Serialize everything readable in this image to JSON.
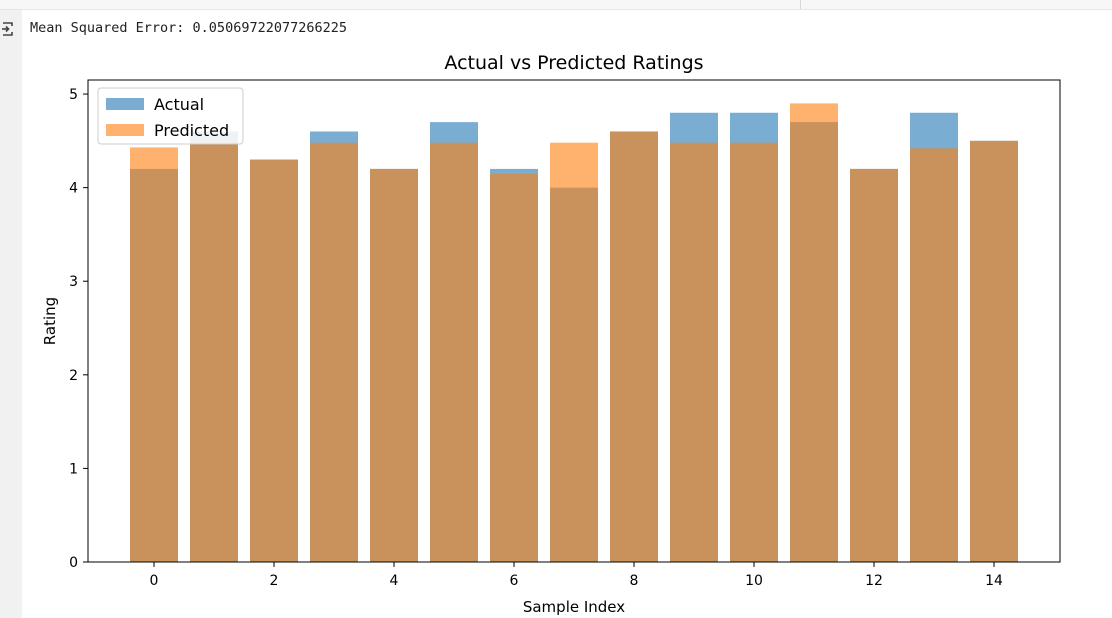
{
  "output": {
    "text": "Mean Squared Error: 0.05069722077266225"
  },
  "icons": {
    "output_icon": "output-redirect-icon"
  },
  "colors": {
    "actual": "#1f77b4",
    "predicted": "#ff7f0e",
    "actual_alpha": 0.6,
    "predicted_alpha": 0.6
  },
  "chart_data": {
    "type": "bar",
    "title": "Actual vs Predicted Ratings",
    "xlabel": "Sample Index",
    "ylabel": "Rating",
    "x": [
      0,
      1,
      2,
      3,
      4,
      5,
      6,
      7,
      8,
      9,
      10,
      11,
      12,
      13,
      14
    ],
    "series": [
      {
        "name": "Actual",
        "values": [
          4.2,
          4.6,
          4.3,
          4.6,
          4.2,
          4.7,
          4.2,
          4.0,
          4.6,
          4.8,
          4.8,
          4.7,
          4.2,
          4.8,
          4.5
        ]
      },
      {
        "name": "Predicted",
        "values": [
          4.43,
          4.49,
          4.3,
          4.48,
          4.2,
          4.48,
          4.15,
          4.48,
          4.6,
          4.48,
          4.48,
          4.9,
          4.2,
          4.42,
          4.5
        ]
      }
    ],
    "xlim": [
      -1.1,
      15.1
    ],
    "ylim": [
      0,
      5.15
    ],
    "xticks": [
      0,
      2,
      4,
      6,
      8,
      10,
      12,
      14
    ],
    "yticks": [
      0,
      1,
      2,
      3,
      4,
      5
    ],
    "grid": false,
    "legend": "upper-left"
  }
}
